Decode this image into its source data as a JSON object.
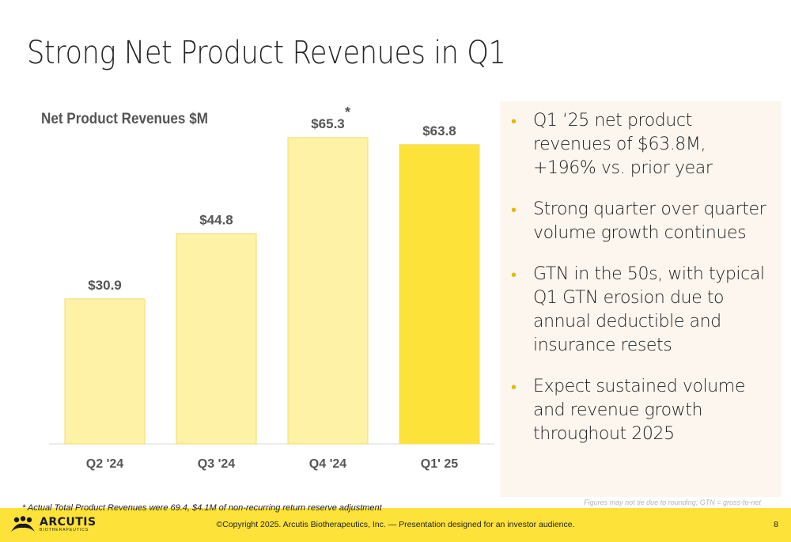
{
  "slide": {
    "title": "Strong Net Product Revenues in Q1",
    "footnote": "* Actual Total Product Revenues were 69.4, $4.1M of non-recurring return reserve adjustment",
    "note": "Figures may not tie due to rounding; GTN = gross-to-net",
    "copyright": "©Copyright 2025. Arcutis Biotherapeutics, Inc.  —  Presentation designed for an investor audience.",
    "page_number": "8",
    "logo": {
      "word": "ARCUTIS",
      "sub": "BIOTHERAPEUTICS"
    }
  },
  "bullets": [
    "Q1 ‘25 net product revenues of $63.8M, +196% vs. prior year",
    "Strong quarter over quarter volume growth continues",
    "GTN in the 50s, with typical Q1 GTN erosion due to annual deductible and insurance resets",
    "Expect sustained volume and revenue growth throughout 2025"
  ],
  "chart_data": {
    "type": "bar",
    "title": "Net Product Revenues $M",
    "categories": [
      "Q2 '24",
      "Q3 '24",
      "Q4 '24",
      "Q1' 25"
    ],
    "values": [
      30.9,
      44.8,
      65.3,
      63.8
    ],
    "data_labels": [
      "$30.9",
      "$44.8",
      "$65.3",
      "$63.8"
    ],
    "annotations": [
      {
        "category": "Q4 '24",
        "text": "*"
      }
    ],
    "colors": [
      "#fdf2a6",
      "#fdf2a6",
      "#fdf2a6",
      "#fde23a"
    ],
    "bar_outline": "#f4dc6a",
    "ylim": [
      0,
      70
    ],
    "grid": false,
    "legend": "none"
  },
  "colors": {
    "accent": "#fde23a",
    "bullet": "#e5b800",
    "panel": "#fdf6ef"
  }
}
